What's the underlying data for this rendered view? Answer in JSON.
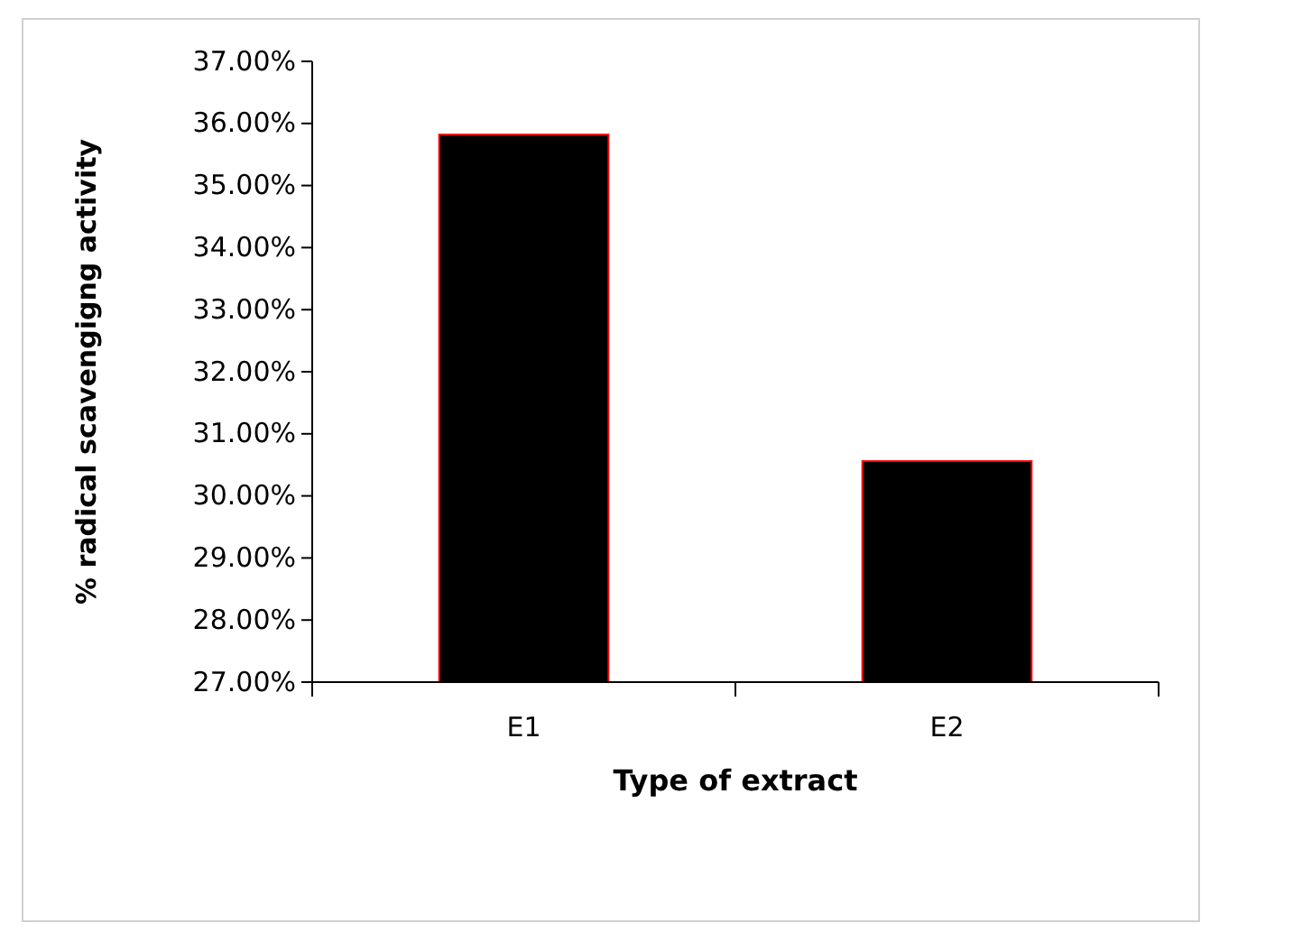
{
  "chart_data": {
    "type": "bar",
    "xlabel": "Type of extract",
    "ylabel": "% radical scavengigng activity",
    "categories": [
      "E1",
      "E2"
    ],
    "values": [
      35.82,
      30.56
    ],
    "color": "#000000",
    "ylim": [
      27,
      37
    ],
    "yticks": [
      {
        "value": 27,
        "label": "27.00%"
      },
      {
        "value": 28,
        "label": "28.00%"
      },
      {
        "value": 29,
        "label": "29.00%"
      },
      {
        "value": 30,
        "label": "30.00%"
      },
      {
        "value": 31,
        "label": "31.00%"
      },
      {
        "value": 32,
        "label": "32.00%"
      },
      {
        "value": 33,
        "label": "33.00%"
      },
      {
        "value": 34,
        "label": "34.00%"
      },
      {
        "value": 35,
        "label": "35.00%"
      },
      {
        "value": 36,
        "label": "36.00%"
      },
      {
        "value": 37,
        "label": "37.00%"
      }
    ],
    "grid": false,
    "legend": false
  }
}
